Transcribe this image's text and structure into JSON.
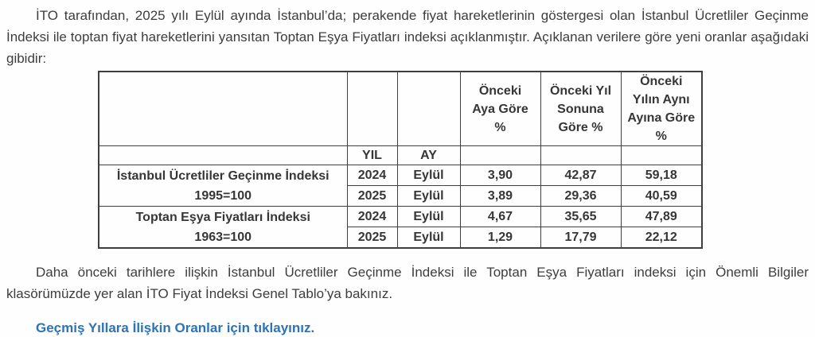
{
  "page": {
    "background": "#fefefe",
    "text_color": "#3d3d3d",
    "table_border_color": "#3f3f3f",
    "link_color": "#2b74b8"
  },
  "intro_paragraph": "İTO tarafından, 2025 yılı Eylül ayında İstanbul’da; perakende fiyat hareketlerinin göstergesi olan İstanbul Ücretliler Geçinme İndeksi  ile toptan fiyat hareketlerini yansıtan Toptan Eşya Fiyatları indeksi açıklanmıştır. Açıklanan verilere göre yeni oranlar aşağıdaki gibidir:",
  "table": {
    "headers": {
      "yil": "YIL",
      "ay": "AY",
      "onceki_aya_gore": "Önceki\nAya Göre\n%",
      "onceki_yil_sonuna_gore": "Önceki Yıl\nSonuna\nGöre %",
      "onceki_yilin_ayni_ayina_gore": "Önceki\nYılın Aynı\nAyına Göre\n%"
    },
    "groups": [
      {
        "name": "İstanbul Ücretliler Geçinme İndeksi\n1995=100",
        "rows": [
          {
            "yil": "2024",
            "ay": "Eylül",
            "onceki_aya_gore": "3,90",
            "onceki_yil_sonuna_gore": "42,87",
            "onceki_yilin_ayni_ayina_gore": "59,18"
          },
          {
            "yil": "2025",
            "ay": "Eylül",
            "onceki_aya_gore": "3,89",
            "onceki_yil_sonuna_gore": "29,36",
            "onceki_yilin_ayni_ayina_gore": "40,59"
          }
        ]
      },
      {
        "name": "Toptan Eşya Fiyatları İndeksi\n1963=100",
        "rows": [
          {
            "yil": "2024",
            "ay": "Eylül",
            "onceki_aya_gore": "4,67",
            "onceki_yil_sonuna_gore": "35,65",
            "onceki_yilin_ayni_ayina_gore": "47,89"
          },
          {
            "yil": "2025",
            "ay": "Eylül",
            "onceki_aya_gore": "1,29",
            "onceki_yil_sonuna_gore": "17,79",
            "onceki_yilin_ayni_ayina_gore": "22,12"
          }
        ]
      }
    ]
  },
  "footer_paragraph": "Daha önceki tarihlere ilişkin İstanbul Ücretliler Geçinme İndeksi  ile Toptan Eşya Fiyatları indeksi için Önemli Bilgiler klasörümüzde yer alan İTO Fiyat İndeksi Genel Tablo’ya bakınız.",
  "link": {
    "text": "Geçmiş Yıllara İlişkin Oranlar için tıklayınız."
  }
}
